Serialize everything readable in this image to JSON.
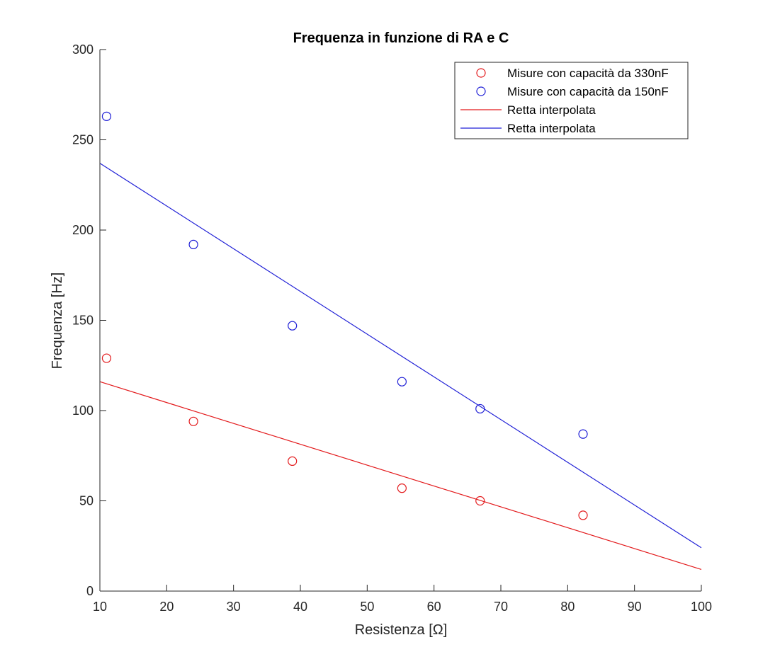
{
  "chart_data": {
    "type": "scatter",
    "title": "Frequenza in funzione di RA e C",
    "xlabel": "Resistenza [Ω]",
    "ylabel": "Frequenza [Hz]",
    "xlim": [
      10,
      100
    ],
    "ylim": [
      0,
      300
    ],
    "x_ticks": [
      10,
      20,
      30,
      40,
      50,
      60,
      70,
      80,
      90,
      100
    ],
    "y_ticks": [
      0,
      50,
      100,
      150,
      200,
      250,
      300
    ],
    "grid": false,
    "legend_position": "top-right",
    "series": [
      {
        "name": "Misure con capacità da 330nF",
        "kind": "scatter",
        "marker": "circle",
        "color": "#e31a1c",
        "points": [
          [
            11,
            129
          ],
          [
            24,
            94
          ],
          [
            38.8,
            72
          ],
          [
            55.2,
            57
          ],
          [
            66.9,
            50
          ],
          [
            82.3,
            42
          ]
        ]
      },
      {
        "name": "Misure con capacità da 150nF",
        "kind": "scatter",
        "marker": "circle",
        "color": "#1f1fd6",
        "points": [
          [
            11,
            263
          ],
          [
            24,
            192
          ],
          [
            38.8,
            147
          ],
          [
            55.2,
            116
          ],
          [
            66.9,
            101
          ],
          [
            82.3,
            87
          ]
        ]
      },
      {
        "name": "Retta interpolata",
        "kind": "line",
        "color": "#e31a1c",
        "points": [
          [
            10,
            116
          ],
          [
            100,
            12
          ]
        ]
      },
      {
        "name": "Retta interpolata",
        "kind": "line",
        "color": "#1f1fd6",
        "points": [
          [
            10,
            237
          ],
          [
            100,
            24
          ]
        ]
      }
    ]
  }
}
